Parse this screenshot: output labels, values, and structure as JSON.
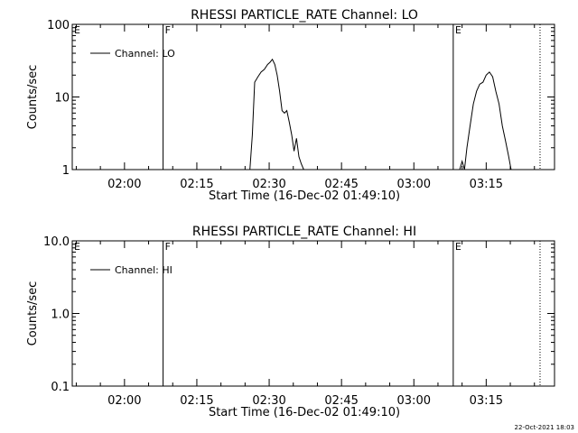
{
  "chart_data": [
    {
      "type": "line",
      "title": "RHESSI PARTICLE_RATE Channel: LO",
      "xlabel": "Start Time (16-Dec-02 01:49:10)",
      "ylabel": "Counts/sec",
      "yscale": "log",
      "ylim": [
        1,
        100
      ],
      "ytick_labels": [
        "1",
        "10",
        "100"
      ],
      "ytick_values": [
        1,
        10,
        100
      ],
      "xlim": [
        "01:49:10",
        "03:29:10"
      ],
      "xtick_labels": [
        "02:00",
        "02:15",
        "02:30",
        "02:45",
        "03:00",
        "03:15"
      ],
      "xtick_values": [
        "02:00",
        "02:15",
        "02:30",
        "02:45",
        "03:00",
        "03:15"
      ],
      "legend": {
        "entries": [
          "Channel: LO"
        ],
        "position": "top-left"
      },
      "markers": [
        {
          "label": "E",
          "x": "01:49:10",
          "style": "solid"
        },
        {
          "label": "F",
          "x": "02:08:00",
          "style": "solid"
        },
        {
          "label": "E",
          "x": "03:08:10",
          "style": "solid"
        },
        {
          "label": "",
          "x": "03:26:10",
          "style": "dotted"
        }
      ],
      "series": [
        {
          "name": "Channel: LO",
          "segments": [
            {
              "x": [
                "02:26:00",
                "02:26:30",
                "02:27:00",
                "02:27:40",
                "02:28:20",
                "02:29:00",
                "02:29:40",
                "02:30:10",
                "02:30:40",
                "02:31:10",
                "02:31:40",
                "02:32:10",
                "02:32:40",
                "02:33:10",
                "02:33:40",
                "02:34:10",
                "02:34:40",
                "02:35:10",
                "02:35:40",
                "02:36:10",
                "02:36:40",
                "02:37:10"
              ],
              "y": [
                1.0,
                3.0,
                16,
                19,
                22,
                24,
                28,
                30,
                33,
                28,
                20,
                12,
                6.5,
                6.0,
                6.5,
                4.5,
                3.0,
                1.8,
                2.7,
                1.5,
                1.2,
                1.0
              ]
            },
            {
              "x": [
                "03:09:30",
                "03:10:00",
                "03:10:30",
                "03:11:00",
                "03:11:40",
                "03:12:20",
                "03:13:00",
                "03:13:40",
                "03:14:20",
                "03:15:00",
                "03:15:40",
                "03:16:20",
                "03:17:00",
                "03:17:40",
                "03:18:20",
                "03:19:00",
                "03:19:40",
                "03:20:10"
              ],
              "y": [
                1.0,
                1.3,
                1.0,
                2.0,
                4.0,
                8.0,
                12,
                15,
                16,
                20,
                22,
                19,
                12,
                8.0,
                4.0,
                2.5,
                1.5,
                1.0
              ]
            }
          ]
        }
      ]
    },
    {
      "type": "line",
      "title": "RHESSI PARTICLE_RATE Channel: HI",
      "xlabel": "Start Time (16-Dec-02 01:49:10)",
      "ylabel": "Counts/sec",
      "yscale": "log",
      "ylim": [
        0.1,
        10
      ],
      "ytick_labels": [
        "0.1",
        "1.0",
        "10.0"
      ],
      "ytick_values": [
        0.1,
        1,
        10
      ],
      "xlim": [
        "01:49:10",
        "03:29:10"
      ],
      "xtick_labels": [
        "02:00",
        "02:15",
        "02:30",
        "02:45",
        "03:00",
        "03:15"
      ],
      "xtick_values": [
        "02:00",
        "02:15",
        "02:30",
        "02:45",
        "03:00",
        "03:15"
      ],
      "legend": {
        "entries": [
          "Channel: HI"
        ],
        "position": "top-left"
      },
      "markers": [
        {
          "label": "E",
          "x": "01:49:10",
          "style": "solid"
        },
        {
          "label": "F",
          "x": "02:08:00",
          "style": "solid"
        },
        {
          "label": "E",
          "x": "03:08:10",
          "style": "solid"
        },
        {
          "label": "",
          "x": "03:26:10",
          "style": "dotted"
        }
      ],
      "series": [
        {
          "name": "Channel: HI",
          "segments": []
        }
      ]
    }
  ],
  "footer": {
    "timestamp": "22-Oct-2021 18:03"
  }
}
